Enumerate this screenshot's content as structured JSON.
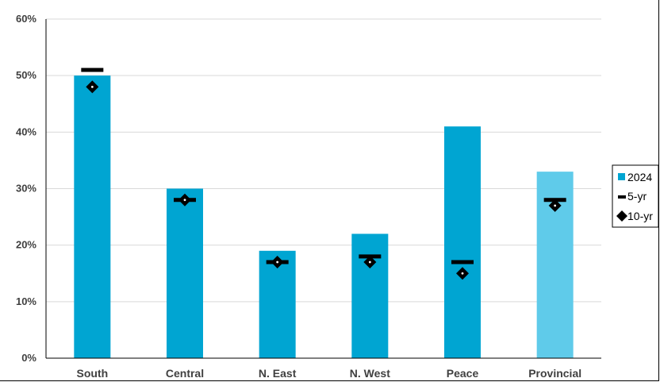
{
  "chart_data": {
    "type": "bar",
    "categories": [
      "South",
      "Central",
      "N. East",
      "N. West",
      "Peace",
      "Provincial"
    ],
    "series": [
      {
        "name": "2024",
        "kind": "bar",
        "values": [
          50,
          30,
          19,
          22,
          41,
          33
        ],
        "colors": [
          "#00a5d2",
          "#00a5d2",
          "#00a5d2",
          "#00a5d2",
          "#00a5d2",
          "#5fcbea"
        ]
      },
      {
        "name": "5-yr",
        "kind": "dash-marker",
        "values": [
          51,
          28,
          17,
          18,
          17,
          28
        ],
        "color": "#000000"
      },
      {
        "name": "10-yr",
        "kind": "diamond-marker",
        "values": [
          48,
          28,
          17,
          17,
          15,
          27
        ],
        "color": "#000000"
      }
    ],
    "y_ticks": [
      "0%",
      "10%",
      "20%",
      "30%",
      "40%",
      "50%",
      "60%"
    ],
    "ylim": [
      0,
      60
    ],
    "grid": true,
    "legend_position": "right"
  }
}
